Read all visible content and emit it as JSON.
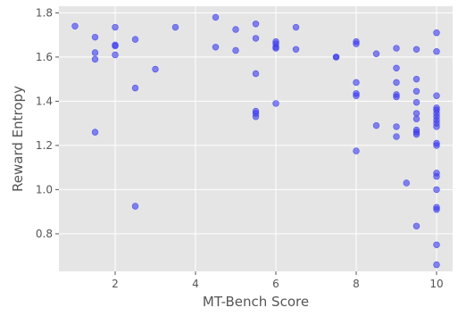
{
  "chart_data": {
    "type": "scatter",
    "title": "",
    "xlabel": "MT-Bench Score",
    "ylabel": "Reward Entropy",
    "xlim": [
      0.6,
      10.4
    ],
    "ylim": [
      0.63,
      1.83
    ],
    "xticks": [
      2,
      4,
      6,
      8,
      10
    ],
    "yticks": [
      0.8,
      1.0,
      1.2,
      1.4,
      1.6,
      1.8
    ],
    "xtick_labels": [
      "2",
      "4",
      "6",
      "8",
      "10"
    ],
    "ytick_labels": [
      "0.8",
      "1.0",
      "1.2",
      "1.4",
      "1.6",
      "1.8"
    ],
    "grid": true,
    "colors": {
      "point": "#3b3bef",
      "background": "#e5e5e5",
      "grid": "#ffffff",
      "text": "#555555"
    },
    "series": [
      {
        "points": [
          [
            1.0,
            1.74
          ],
          [
            1.5,
            1.69
          ],
          [
            1.5,
            1.62
          ],
          [
            1.5,
            1.59
          ],
          [
            1.5,
            1.26
          ],
          [
            2.0,
            1.735
          ],
          [
            2.0,
            1.655
          ],
          [
            2.0,
            1.65
          ],
          [
            2.0,
            1.61
          ],
          [
            2.5,
            1.68
          ],
          [
            2.5,
            1.46
          ],
          [
            2.5,
            0.925
          ],
          [
            3.0,
            1.545
          ],
          [
            3.5,
            1.735
          ],
          [
            4.5,
            1.78
          ],
          [
            4.5,
            1.645
          ],
          [
            5.0,
            1.725
          ],
          [
            5.0,
            1.63
          ],
          [
            5.5,
            1.75
          ],
          [
            5.5,
            1.685
          ],
          [
            5.5,
            1.525
          ],
          [
            5.5,
            1.355
          ],
          [
            5.5,
            1.345
          ],
          [
            5.5,
            1.33
          ],
          [
            6.0,
            1.67
          ],
          [
            6.0,
            1.66
          ],
          [
            6.0,
            1.645
          ],
          [
            6.0,
            1.64
          ],
          [
            6.0,
            1.39
          ],
          [
            6.5,
            1.735
          ],
          [
            6.5,
            1.635
          ],
          [
            7.5,
            1.6
          ],
          [
            7.5,
            1.6
          ],
          [
            8.0,
            1.67
          ],
          [
            8.0,
            1.66
          ],
          [
            8.0,
            1.485
          ],
          [
            8.0,
            1.435
          ],
          [
            8.0,
            1.425
          ],
          [
            8.0,
            1.175
          ],
          [
            8.5,
            1.615
          ],
          [
            8.5,
            1.29
          ],
          [
            9.0,
            1.64
          ],
          [
            9.0,
            1.55
          ],
          [
            9.0,
            1.485
          ],
          [
            9.0,
            1.43
          ],
          [
            9.0,
            1.42
          ],
          [
            9.0,
            1.285
          ],
          [
            9.0,
            1.24
          ],
          [
            9.25,
            1.03
          ],
          [
            9.5,
            1.635
          ],
          [
            9.5,
            1.5
          ],
          [
            9.5,
            1.445
          ],
          [
            9.5,
            1.395
          ],
          [
            9.5,
            1.345
          ],
          [
            9.5,
            1.32
          ],
          [
            9.5,
            1.27
          ],
          [
            9.5,
            1.26
          ],
          [
            9.5,
            1.25
          ],
          [
            9.5,
            0.835
          ],
          [
            10.0,
            1.71
          ],
          [
            10.0,
            1.625
          ],
          [
            10.0,
            1.425
          ],
          [
            10.0,
            1.37
          ],
          [
            10.0,
            1.36
          ],
          [
            10.0,
            1.345
          ],
          [
            10.0,
            1.33
          ],
          [
            10.0,
            1.315
          ],
          [
            10.0,
            1.3
          ],
          [
            10.0,
            1.285
          ],
          [
            10.0,
            1.21
          ],
          [
            10.0,
            1.2
          ],
          [
            10.0,
            1.075
          ],
          [
            10.0,
            1.06
          ],
          [
            10.0,
            1.0
          ],
          [
            10.0,
            0.92
          ],
          [
            10.0,
            0.91
          ],
          [
            10.0,
            0.75
          ],
          [
            10.0,
            0.66
          ]
        ]
      }
    ]
  }
}
